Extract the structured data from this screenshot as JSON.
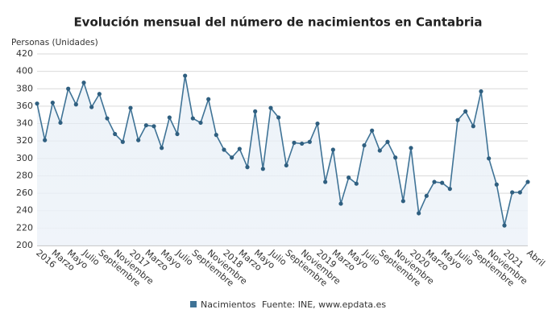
{
  "chart_data": {
    "type": "line",
    "title": "Evolución mensual del número de nacimientos en Cantabria",
    "y_label": "Personas (Unidades)",
    "source": "Fuente: INE, www.epdata.es",
    "categories": [
      "2016",
      null,
      "Marzo",
      null,
      "Mayo",
      null,
      "Julio",
      null,
      "Septiembre",
      null,
      "Noviembre",
      null,
      "2017",
      null,
      "Marzo",
      null,
      "Mayo",
      null,
      "Julio",
      null,
      "Septiembre",
      null,
      "Noviembre",
      null,
      "2018",
      null,
      "Marzo",
      null,
      "Mayo",
      null,
      "Julio",
      null,
      "Septiembre",
      null,
      "Noviembre",
      null,
      "2019",
      null,
      "Marzo",
      null,
      "Mayo",
      null,
      "Julio",
      null,
      "Septiembre",
      null,
      "Noviembre",
      null,
      "2020",
      null,
      "Marzo",
      null,
      "Mayo",
      null,
      "Julio",
      null,
      "Septiembre",
      null,
      "Noviembre",
      null,
      "2021",
      null,
      null,
      "Abril"
    ],
    "series": [
      {
        "name": "Nacimientos",
        "color": "#3f7396",
        "values": [
          363,
          321,
          364,
          341,
          380,
          362,
          387,
          359,
          374,
          346,
          328,
          319,
          358,
          321,
          338,
          337,
          312,
          347,
          328,
          395,
          346,
          341,
          368,
          327,
          310,
          301,
          311,
          290,
          354,
          288,
          358,
          347,
          292,
          318,
          317,
          319,
          340,
          273,
          310,
          248,
          278,
          271,
          315,
          332,
          309,
          319,
          301,
          251,
          312,
          237,
          257,
          273,
          272,
          265,
          344,
          354,
          337,
          377,
          300,
          270,
          223,
          261,
          261,
          273
        ]
      }
    ],
    "ylim": [
      200,
      420
    ],
    "yticks": [
      200,
      220,
      240,
      260,
      280,
      300,
      320,
      340,
      360,
      380,
      400,
      420
    ],
    "grid": true
  }
}
